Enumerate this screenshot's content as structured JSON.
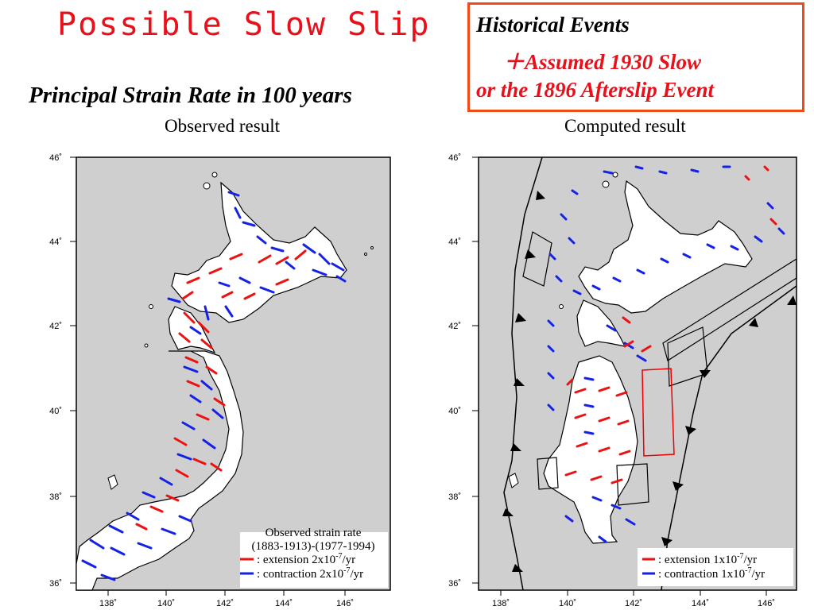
{
  "slide": {
    "title": "Possible Slow Slip",
    "subtitle": "Principal Strain Rate in 100 years"
  },
  "historical": {
    "heading": "Historical Events",
    "line2": "＋Assumed 1930 Slow",
    "line3": "or the 1896 Afterslip Event"
  },
  "panels": {
    "observed": {
      "title": "Observed result",
      "legend_title": "Observed strain rate",
      "legend_period": "(1883-1913)-(1977-1994)",
      "extension": ": extension 2x10",
      "contraction": ": contraction 2x10",
      "exponent": "-7",
      "unit": "/yr"
    },
    "computed": {
      "title": "Computed result",
      "extension": ": extension 1x10",
      "contraction": ": contraction 1x10",
      "exponent": "-7",
      "unit": "/yr"
    }
  },
  "axes": {
    "lat_ticks": [
      "46˚",
      "44˚",
      "42˚",
      "40˚",
      "38˚",
      "36˚"
    ],
    "lon_ticks": [
      "138˚",
      "140˚",
      "142˚",
      "144˚",
      "146˚"
    ]
  },
  "colors": {
    "title_red": "#e8101a",
    "box_border": "#f04a18",
    "extension": "#ee1111",
    "contraction": "#1522e6",
    "sea": "#cfcfcf",
    "land": "#ffffff"
  }
}
